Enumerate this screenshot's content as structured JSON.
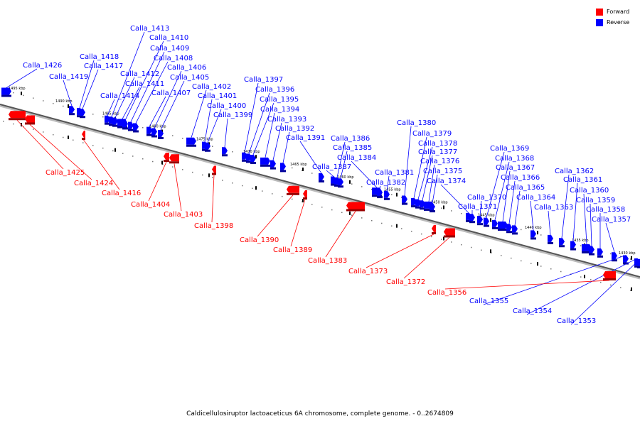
{
  "legend": {
    "forward_label": "Forward",
    "reverse_label": "Reverse",
    "forward_color": "#ff0000",
    "reverse_color": "#0000ff"
  },
  "caption": "Caldicellulosiruptor lactoaceticus 6A chromosome, complete genome. - 0..2674809",
  "ticks": [
    {
      "label": "1495 kbp",
      "kbp": 1495
    },
    {
      "label": "1490 kbp",
      "kbp": 1490
    },
    {
      "label": "1485 kbp",
      "kbp": 1485
    },
    {
      "label": "1480 kbp",
      "kbp": 1480
    },
    {
      "label": "1475 kbp",
      "kbp": 1475
    },
    {
      "label": "1470 kbp",
      "kbp": 1470
    },
    {
      "label": "1465 kbp",
      "kbp": 1465
    },
    {
      "label": "1460 kbp",
      "kbp": 1460
    },
    {
      "label": "1455 kbp",
      "kbp": 1455
    },
    {
      "label": "1450 kbp",
      "kbp": 1450
    },
    {
      "label": "1445 kbp",
      "kbp": 1445
    },
    {
      "label": "1440 kbp",
      "kbp": 1440
    },
    {
      "label": "1435 kbp",
      "kbp": 1435
    },
    {
      "label": "1430 kbp",
      "kbp": 1430
    }
  ],
  "reverse_genes": [
    "Calla_1426",
    "Calla_1419",
    "Calla_1418",
    "Calla_1417",
    "Calla_1414",
    "Calla_1413",
    "Calla_1412",
    "Calla_1411",
    "Calla_1410",
    "Calla_1409",
    "Calla_1408",
    "Calla_1407",
    "Calla_1406",
    "Calla_1405",
    "Calla_1402",
    "Calla_1401",
    "Calla_1400",
    "Calla_1399",
    "Calla_1397",
    "Calla_1396",
    "Calla_1395",
    "Calla_1394",
    "Calla_1393",
    "Calla_1392",
    "Calla_1391",
    "Calla_1387",
    "Calla_1386",
    "Calla_1385",
    "Calla_1384",
    "Calla_1382",
    "Calla_1381",
    "Calla_1380",
    "Calla_1379",
    "Calla_1378",
    "Calla_1377",
    "Calla_1376",
    "Calla_1375",
    "Calla_1374",
    "Calla_1371",
    "Calla_1370",
    "Calla_1369",
    "Calla_1368",
    "Calla_1367",
    "Calla_1366",
    "Calla_1365",
    "Calla_1364",
    "Calla_1363",
    "Calla_1362",
    "Calla_1361",
    "Calla_1360",
    "Calla_1359",
    "Calla_1358",
    "Calla_1357",
    "Calla_1355",
    "Calla_1354",
    "Calla_1353"
  ],
  "forward_genes": [
    "Calla_1425",
    "Calla_1424",
    "Calla_1416",
    "Calla_1404",
    "Calla_1403",
    "Calla_1398",
    "Calla_1390",
    "Calla_1389",
    "Calla_1383",
    "Calla_1373",
    "Calla_1372",
    "Calla_1356"
  ]
}
